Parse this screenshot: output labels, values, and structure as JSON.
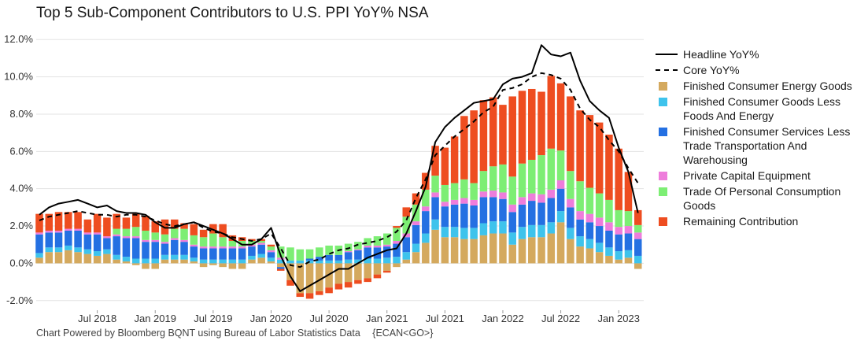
{
  "title": "Top 5 Sub-Component Contributors to U.S. PPI YoY% NSA",
  "footer": {
    "source": "Chart Powered by Bloomberg BQNT using Bureau of Labor Statistics Data",
    "code": "{ECAN<GO>}"
  },
  "legend": [
    {
      "label": "Headline YoY%",
      "kind": "line",
      "color": "#000000"
    },
    {
      "label": "Core YoY%",
      "kind": "dash",
      "color": "#000000"
    },
    {
      "label": "Finished Consumer Energy Goods",
      "kind": "box",
      "color": "#D4A95E"
    },
    {
      "label": "Finished Consumer Goods Less Foods And Energy",
      "kind": "box",
      "color": "#3EC3EC"
    },
    {
      "label": "Finished Consumer Services Less Trade Transportation And Warehousing",
      "kind": "box",
      "color": "#2470E2"
    },
    {
      "label": "Private Capital Equipment",
      "kind": "box",
      "color": "#EE7DDB"
    },
    {
      "label": "Trade Of Personal Consumption Goods",
      "kind": "box",
      "color": "#7DEE74"
    },
    {
      "label": "Remaining Contribution",
      "kind": "box",
      "color": "#EE4D20"
    }
  ],
  "chart_data": {
    "type": "bar",
    "stacked": true,
    "x_start": "2018-01",
    "x_end": "2023-03",
    "yticks": [
      "-2.0%",
      "0.0%",
      "2.0%",
      "4.0%",
      "6.0%",
      "8.0%",
      "10.0%",
      "12.0%"
    ],
    "ylim": [
      -2.6,
      12.6
    ],
    "xticks": [
      "Jul 2018",
      "Jan 2019",
      "Jul 2019",
      "Jan 2020",
      "Jul 2020",
      "Jan 2021",
      "Jul 2021",
      "Jan 2022",
      "Jul 2022",
      "Jan 2023"
    ],
    "grid": true,
    "legend_position": "right",
    "series": [
      {
        "name": "Finished Consumer Energy Goods",
        "color": "#D4A95E",
        "values": [
          0.3,
          0.6,
          0.6,
          0.7,
          0.6,
          0.5,
          0.4,
          0.5,
          0.2,
          0.1,
          -0.1,
          -0.3,
          -0.3,
          0.2,
          0.2,
          0.2,
          0.1,
          -0.2,
          -0.1,
          -0.2,
          -0.3,
          -0.3,
          0.2,
          0.3,
          0.1,
          -0.2,
          -0.9,
          -1.6,
          -1.6,
          -1.5,
          -1.3,
          -1.1,
          -1.0,
          -0.9,
          -0.8,
          -0.6,
          -0.4,
          -0.2,
          0.2,
          0.6,
          1.1,
          1.8,
          1.4,
          1.4,
          1.3,
          1.3,
          1.5,
          1.6,
          1.6,
          1.0,
          1.3,
          1.4,
          1.4,
          1.6,
          2.2,
          1.3,
          0.9,
          0.8,
          0.6,
          0.4,
          0.2,
          0.3,
          -0.3
        ]
      },
      {
        "name": "Finished Consumer Goods Less Foods And Energy",
        "color": "#3EC3EC",
        "values": [
          0.25,
          0.25,
          0.25,
          0.25,
          0.25,
          0.25,
          0.25,
          0.25,
          0.25,
          0.25,
          0.25,
          0.25,
          0.25,
          0.25,
          0.25,
          0.25,
          0.2,
          0.2,
          0.2,
          0.2,
          0.2,
          0.2,
          0.2,
          0.2,
          0.2,
          0.2,
          0.15,
          0.15,
          0.15,
          0.15,
          0.15,
          0.15,
          0.2,
          0.2,
          0.25,
          0.25,
          0.3,
          0.35,
          0.4,
          0.45,
          0.5,
          0.55,
          0.55,
          0.55,
          0.6,
          0.6,
          0.65,
          0.65,
          0.65,
          0.65,
          0.65,
          0.65,
          0.65,
          0.6,
          0.6,
          0.6,
          0.55,
          0.5,
          0.5,
          0.45,
          0.45,
          0.4,
          0.4
        ]
      },
      {
        "name": "Finished Consumer Services Less Trade Transportation And Warehousing",
        "color": "#2470E2",
        "values": [
          1.0,
          0.8,
          0.8,
          0.8,
          0.9,
          0.8,
          0.9,
          0.6,
          1.0,
          1.0,
          1.1,
          0.9,
          0.9,
          0.6,
          0.8,
          0.7,
          0.6,
          0.6,
          0.6,
          0.6,
          0.6,
          0.6,
          0.5,
          0.5,
          0.3,
          -0.1,
          0.0,
          0.0,
          0.1,
          0.2,
          0.3,
          0.3,
          0.4,
          0.5,
          0.6,
          0.6,
          0.6,
          0.7,
          0.8,
          1.0,
          1.2,
          1.2,
          1.1,
          1.2,
          1.3,
          1.2,
          1.4,
          1.3,
          1.2,
          1.1,
          1.2,
          1.3,
          1.2,
          1.3,
          1.2,
          1.1,
          0.9,
          0.9,
          0.9,
          0.9,
          0.9,
          0.9,
          0.9
        ]
      },
      {
        "name": "Private Capital Equipment",
        "color": "#EE7DDB",
        "values": [
          0.1,
          0.1,
          0.1,
          0.1,
          0.1,
          0.1,
          0.1,
          0.1,
          0.1,
          0.1,
          0.1,
          0.1,
          0.1,
          0.1,
          0.1,
          0.1,
          0.1,
          0.1,
          0.1,
          0.1,
          0.1,
          0.1,
          0.1,
          0.1,
          0.1,
          0.1,
          0.0,
          0.0,
          0.0,
          0.0,
          0.0,
          0.0,
          0.05,
          0.05,
          0.1,
          0.1,
          0.1,
          0.15,
          0.2,
          0.2,
          0.25,
          0.25,
          0.25,
          0.25,
          0.3,
          0.3,
          0.3,
          0.35,
          0.35,
          0.4,
          0.4,
          0.4,
          0.45,
          0.45,
          0.45,
          0.45,
          0.45,
          0.45,
          0.45,
          0.45,
          0.4,
          0.4,
          0.35
        ]
      },
      {
        "name": "Trade Of Personal Consumption Goods",
        "color": "#7DEE74",
        "values": [
          0.0,
          0.0,
          0.0,
          0.0,
          0.0,
          0.0,
          0.0,
          0.0,
          0.3,
          0.4,
          0.5,
          0.5,
          0.4,
          0.4,
          0.5,
          0.6,
          0.5,
          0.5,
          0.7,
          0.5,
          0.3,
          0.3,
          0.2,
          0.1,
          0.2,
          0.6,
          0.7,
          0.6,
          0.5,
          0.5,
          0.5,
          0.5,
          0.4,
          0.4,
          0.4,
          0.5,
          0.6,
          0.7,
          0.9,
          0.9,
          0.9,
          0.9,
          0.9,
          0.9,
          1.0,
          0.9,
          1.1,
          1.3,
          1.5,
          1.5,
          1.8,
          1.8,
          2.1,
          2.2,
          1.6,
          1.5,
          1.6,
          1.4,
          1.3,
          1.2,
          0.9,
          0.8,
          0.4
        ]
      },
      {
        "name": "Remaining Contribution",
        "color": "#EE4D20",
        "values": [
          1.0,
          0.9,
          1.0,
          0.9,
          0.9,
          0.7,
          1.0,
          1.0,
          0.8,
          0.6,
          0.7,
          0.8,
          0.6,
          0.8,
          0.5,
          0.3,
          0.6,
          0.4,
          0.5,
          0.7,
          0.3,
          0.2,
          0.1,
          0.1,
          0.1,
          -0.1,
          -0.3,
          -0.2,
          -0.3,
          -0.2,
          -0.3,
          -0.3,
          -0.3,
          -0.2,
          -0.2,
          -0.2,
          -0.1,
          0.1,
          0.5,
          0.6,
          0.9,
          1.6,
          2.0,
          2.5,
          3.4,
          3.9,
          3.8,
          3.7,
          3.2,
          4.3,
          3.9,
          3.8,
          3.4,
          3.9,
          3.6,
          4.0,
          3.8,
          3.9,
          3.8,
          3.5,
          3.3,
          2.1,
          0.8
        ]
      },
      {
        "name": "Headline YoY%",
        "kind": "line",
        "color": "#000000",
        "values": [
          2.6,
          3.0,
          3.2,
          3.3,
          3.4,
          3.2,
          3.0,
          3.1,
          2.8,
          2.7,
          2.7,
          2.6,
          2.2,
          1.9,
          1.9,
          2.1,
          2.2,
          2.0,
          1.8,
          1.6,
          1.3,
          1.0,
          1.0,
          1.3,
          1.9,
          0.4,
          -0.7,
          -1.5,
          -1.2,
          -0.9,
          -0.6,
          -0.3,
          -0.3,
          0.0,
          0.3,
          0.5,
          0.7,
          0.8,
          1.6,
          2.8,
          4.1,
          6.5,
          7.3,
          7.8,
          8.2,
          8.6,
          8.7,
          8.8,
          9.6,
          9.9,
          10.0,
          10.2,
          11.7,
          11.2,
          11.1,
          11.3,
          9.8,
          8.7,
          8.2,
          7.8,
          6.2,
          4.9,
          2.7
        ]
      },
      {
        "name": "Core YoY%",
        "kind": "dash",
        "color": "#000000",
        "values": [
          2.3,
          2.5,
          2.6,
          2.7,
          2.8,
          2.7,
          2.6,
          2.6,
          2.5,
          2.6,
          2.6,
          2.5,
          2.3,
          2.1,
          2.0,
          2.1,
          2.2,
          1.9,
          1.7,
          1.6,
          1.4,
          1.3,
          1.2,
          1.3,
          1.6,
          0.8,
          -0.1,
          -0.2,
          0.1,
          0.2,
          0.5,
          0.7,
          0.8,
          1.0,
          1.1,
          1.2,
          1.4,
          1.7,
          2.3,
          3.5,
          4.5,
          5.8,
          6.3,
          6.8,
          7.2,
          7.6,
          8.1,
          8.4,
          9.3,
          9.4,
          9.6,
          10.0,
          10.2,
          10.1,
          9.9,
          9.3,
          8.3,
          7.7,
          7.3,
          6.6,
          6.0,
          5.1,
          4.3
        ]
      }
    ]
  }
}
